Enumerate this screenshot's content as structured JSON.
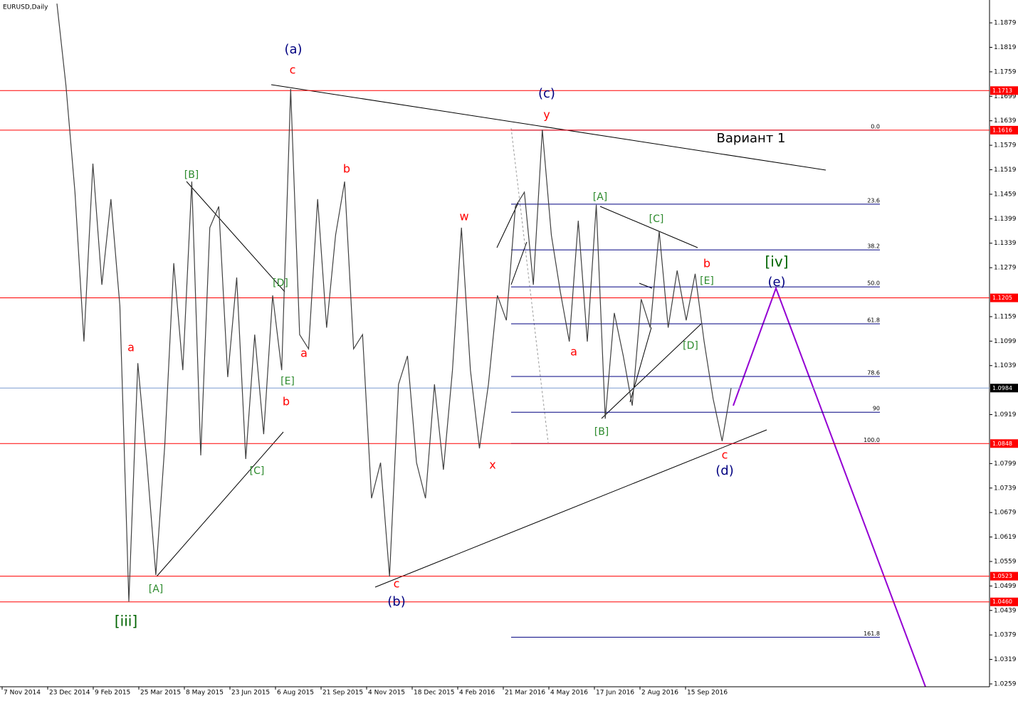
{
  "chart_data": {
    "type": "line",
    "title": "EURUSD,Daily",
    "color": "#404040",
    "ylim": [
      1.0252,
      1.1928
    ],
    "yticks": [
      1.1879,
      1.1819,
      1.1759,
      1.1699,
      1.1639,
      1.1579,
      1.1519,
      1.1459,
      1.1399,
      1.1339,
      1.1279,
      1.1159,
      1.1099,
      1.1039,
      1.0919,
      1.0799,
      1.0739,
      1.0679,
      1.0619,
      1.0559,
      1.0499,
      1.0439,
      1.0379,
      1.0319,
      1.0259
    ],
    "x_labels": [
      "7 Nov 2014",
      "23 Dec 2014",
      "9 Feb 2015",
      "25 Mar 2015",
      "8 May 2015",
      "23 Jun 2015",
      "6 Aug 2015",
      "21 Sep 2015",
      "4 Nov 2015",
      "18 Dec 2015",
      "4 Feb 2016",
      "21 Mar 2016",
      "4 May 2016",
      "17 Jun 2016",
      "2 Aug 2016",
      "15 Sep 2016"
    ],
    "values": [
      1.1926,
      1.1726,
      1.1464,
      1.1098,
      1.1534,
      1.1237,
      1.1447,
      1.1185,
      1.0461,
      1.1045,
      1.0801,
      1.0526,
      1.0845,
      1.129,
      1.1028,
      1.149,
      1.0819,
      1.1377,
      1.1429,
      1.1011,
      1.1255,
      1.081,
      1.1115,
      1.0871,
      1.1211,
      1.1028,
      1.1717,
      1.1115,
      1.108,
      1.1447,
      1.1132,
      1.1359,
      1.149,
      1.108,
      1.1115,
      1.0714,
      1.0801,
      1.0522,
      1.0993,
      1.1063,
      1.0801,
      1.0714,
      1.0993,
      1.0784,
      1.1028,
      1.1377,
      1.1028,
      1.0836,
      1.0993,
      1.1211,
      1.115,
      1.1429,
      1.1464,
      1.1237,
      1.1617,
      1.1359,
      1.122,
      1.1098,
      1.1394,
      1.1098,
      1.1433,
      1.0909,
      1.1168,
      1.1063,
      1.0941,
      1.1202,
      1.1132,
      1.1368,
      1.1132,
      1.1272,
      1.115,
      1.1264,
      1.1098,
      1.0958,
      1.0854,
      1.0984
    ],
    "levels": [
      1.1713,
      1.1616,
      1.1205,
      1.0848,
      1.0523,
      {
        "value": 1.046,
        "label": "1.0460"
      }
    ],
    "level_color": "#ff0000",
    "current_price": 1.0984,
    "fib_levels": [
      {
        "value": 0,
        "label": "0.0"
      },
      23.6,
      38.2,
      {
        "value": 50,
        "label": "50.0"
      },
      61.8,
      78.6,
      90,
      {
        "value": 100,
        "label": "100.0"
      },
      161.8
    ],
    "fib_color": "#000080",
    "annotations": [
      {
        "text": "(a)",
        "color": "#000080"
      },
      {
        "text": "c",
        "color": "#ff0000"
      },
      {
        "text": "(c)",
        "color": "#000080"
      },
      {
        "text": "y",
        "color": "#ff0000"
      },
      {
        "text": "Вариант 1",
        "color": "#000000"
      },
      {
        "text": "[B]",
        "color": "#2e8b2e"
      },
      {
        "text": "b",
        "color": "#ff0000"
      },
      {
        "text": "w",
        "color": "#ff0000"
      },
      {
        "text": "[A]",
        "color": "#2e8b2e"
      },
      {
        "text": "[C]",
        "color": "#2e8b2e"
      },
      {
        "text": "b",
        "color": "#ff0000"
      },
      {
        "text": "[iv]",
        "color": "#006400"
      },
      {
        "text": "(e)",
        "color": "#000080"
      },
      {
        "text": "[D]",
        "color": "#2e8b2e"
      },
      {
        "text": "[E]",
        "color": "#2e8b2e"
      },
      {
        "text": "a",
        "color": "#ff0000"
      },
      {
        "text": "a",
        "color": "#ff0000"
      },
      {
        "text": "a",
        "color": "#ff0000"
      },
      {
        "text": "[D]",
        "color": "#2e8b2e"
      },
      {
        "text": "[E]",
        "color": "#2e8b2e"
      },
      {
        "text": "b",
        "color": "#ff0000"
      },
      {
        "text": "[B]",
        "color": "#2e8b2e"
      },
      {
        "text": "x",
        "color": "#ff0000"
      },
      {
        "text": "c",
        "color": "#ff0000"
      },
      {
        "text": "(d)",
        "color": "#000080"
      },
      {
        "text": "[C]",
        "color": "#2e8b2e"
      },
      {
        "text": "[A]",
        "color": "#2e8b2e"
      },
      {
        "text": "c",
        "color": "#ff0000"
      },
      {
        "text": "(b)",
        "color": "#000080"
      },
      {
        "text": "[iii]",
        "color": "#006400"
      }
    ]
  }
}
